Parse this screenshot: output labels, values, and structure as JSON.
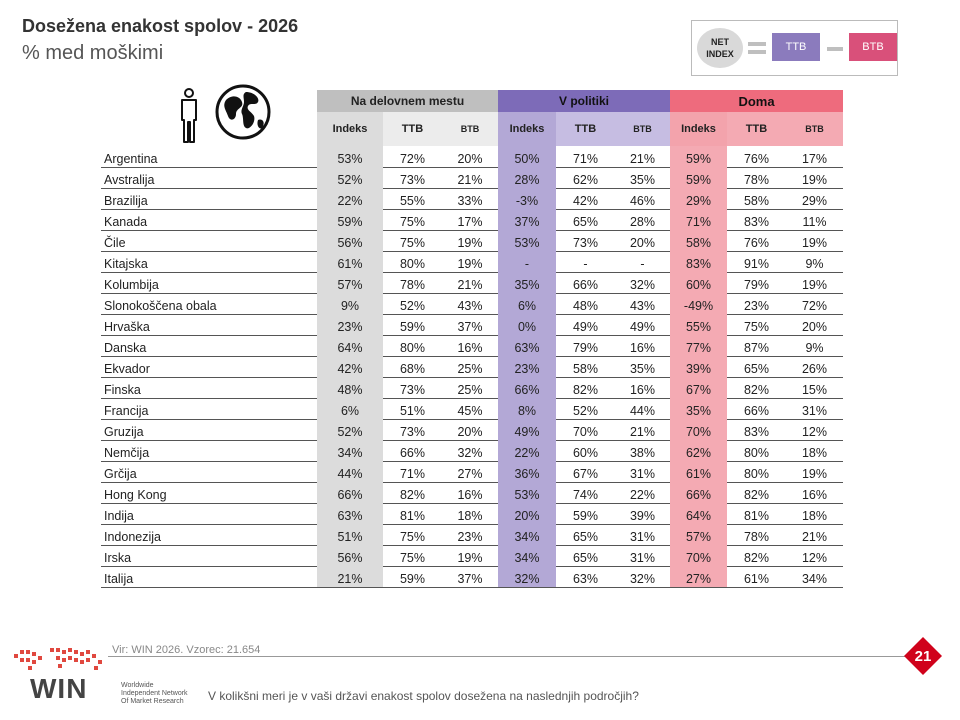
{
  "title": "Dosežena enakost spolov - 2026",
  "subtitle": "% med moškimi",
  "legend": {
    "net_index": "NET INDEX",
    "ttb": "TTB",
    "btb": "BTB"
  },
  "groups": [
    "Na delovnem mestu",
    "V politiki",
    "Doma"
  ],
  "columns": [
    "Indeks",
    "TTB",
    "BTB",
    "Indeks",
    "TTB",
    "BTB",
    "Indeks",
    "TTB",
    "BTB"
  ],
  "rows": [
    [
      "Argentina",
      "53%",
      "72%",
      "20%",
      "50%",
      "71%",
      "21%",
      "59%",
      "76%",
      "17%"
    ],
    [
      "Avstralija",
      "52%",
      "73%",
      "21%",
      "28%",
      "62%",
      "35%",
      "59%",
      "78%",
      "19%"
    ],
    [
      "Brazilija",
      "22%",
      "55%",
      "33%",
      "-3%",
      "42%",
      "46%",
      "29%",
      "58%",
      "29%"
    ],
    [
      "Kanada",
      "59%",
      "75%",
      "17%",
      "37%",
      "65%",
      "28%",
      "71%",
      "83%",
      "11%"
    ],
    [
      "Čile",
      "56%",
      "75%",
      "19%",
      "53%",
      "73%",
      "20%",
      "58%",
      "76%",
      "19%"
    ],
    [
      "Kitajska",
      "61%",
      "80%",
      "19%",
      "-",
      "-",
      "-",
      "83%",
      "91%",
      "9%"
    ],
    [
      "Kolumbija",
      "57%",
      "78%",
      "21%",
      "35%",
      "66%",
      "32%",
      "60%",
      "79%",
      "19%"
    ],
    [
      "Slonokoščena obala",
      "9%",
      "52%",
      "43%",
      "6%",
      "48%",
      "43%",
      "-49%",
      "23%",
      "72%"
    ],
    [
      "Hrvaška",
      "23%",
      "59%",
      "37%",
      "0%",
      "49%",
      "49%",
      "55%",
      "75%",
      "20%"
    ],
    [
      "Danska",
      "64%",
      "80%",
      "16%",
      "63%",
      "79%",
      "16%",
      "77%",
      "87%",
      "9%"
    ],
    [
      "Ekvador",
      "42%",
      "68%",
      "25%",
      "23%",
      "58%",
      "35%",
      "39%",
      "65%",
      "26%"
    ],
    [
      "Finska",
      "48%",
      "73%",
      "25%",
      "66%",
      "82%",
      "16%",
      "67%",
      "82%",
      "15%"
    ],
    [
      "Francija",
      "6%",
      "51%",
      "45%",
      "8%",
      "52%",
      "44%",
      "35%",
      "66%",
      "31%"
    ],
    [
      "Gruzija",
      "52%",
      "73%",
      "20%",
      "49%",
      "70%",
      "21%",
      "70%",
      "83%",
      "12%"
    ],
    [
      "Nemčija",
      "34%",
      "66%",
      "32%",
      "22%",
      "60%",
      "38%",
      "62%",
      "80%",
      "18%"
    ],
    [
      "Grčija",
      "44%",
      "71%",
      "27%",
      "36%",
      "67%",
      "31%",
      "61%",
      "80%",
      "19%"
    ],
    [
      "Hong Kong",
      "66%",
      "82%",
      "16%",
      "53%",
      "74%",
      "22%",
      "66%",
      "82%",
      "16%"
    ],
    [
      "Indija",
      "63%",
      "81%",
      "18%",
      "20%",
      "59%",
      "39%",
      "64%",
      "81%",
      "18%"
    ],
    [
      "Indonezija",
      "51%",
      "75%",
      "23%",
      "34%",
      "65%",
      "31%",
      "57%",
      "78%",
      "21%"
    ],
    [
      "Irska",
      "56%",
      "75%",
      "19%",
      "34%",
      "65%",
      "31%",
      "70%",
      "82%",
      "12%"
    ],
    [
      "Italija",
      "21%",
      "59%",
      "37%",
      "32%",
      "63%",
      "32%",
      "27%",
      "61%",
      "34%"
    ]
  ],
  "footer": {
    "source": "Vir: WIN 2026.  Vzorec: 21.654",
    "question": "V kolikšni meri je v vaši državi enakost spolov dosežena na naslednjih področjih?",
    "page": "21",
    "logo_word": "WIN",
    "logo_tagline": [
      "Worldwide",
      "Independent Network",
      "Of Market Research"
    ]
  },
  "colors": {
    "group_work": "#bfbfbf",
    "group_politics": "#7d6bb8",
    "group_home": "#ee6b7d",
    "index_work": "#dcdcdc",
    "index_politics": "#b3a8d6",
    "index_home": "#f4aab3",
    "badge": "#d0021b"
  }
}
